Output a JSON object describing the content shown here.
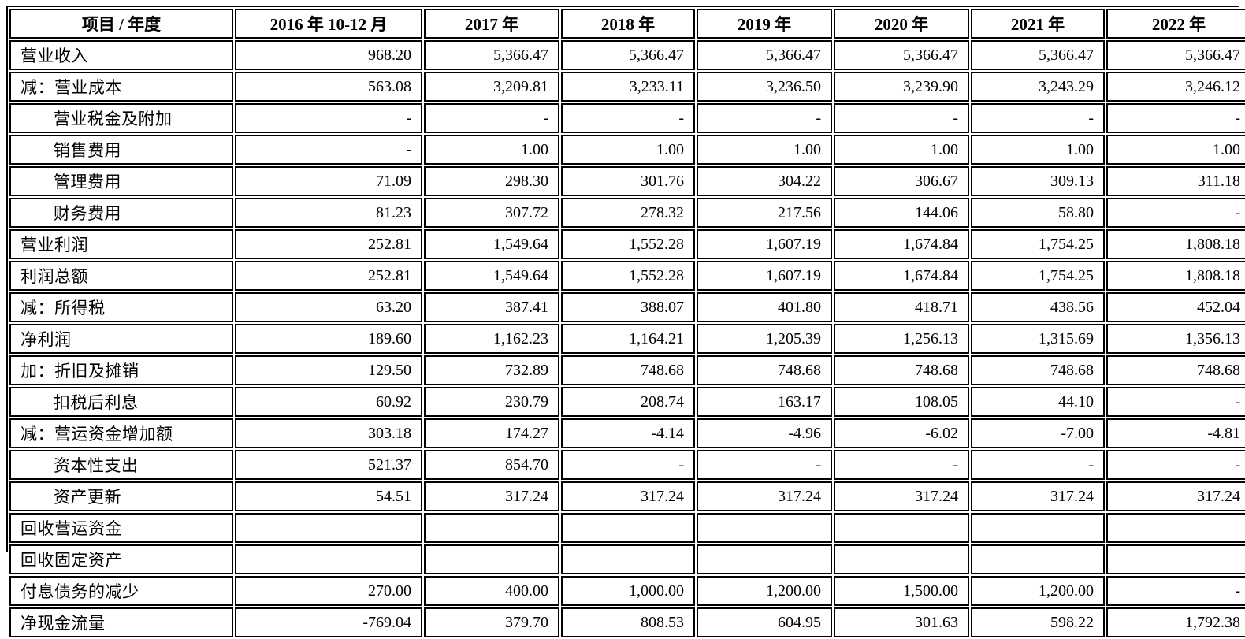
{
  "colors": {
    "text": "#000000",
    "border": "#000000",
    "background": "#ffffff"
  },
  "table": {
    "columns": [
      "项目 / 年度",
      "2016 年 10-12 月",
      "2017 年",
      "2018 年",
      "2019 年",
      "2020 年",
      "2021 年",
      "2022 年"
    ],
    "rows": [
      {
        "label": "营业收入",
        "indent": 0,
        "values": [
          "968.20",
          "5,366.47",
          "5,366.47",
          "5,366.47",
          "5,366.47",
          "5,366.47",
          "5,366.47"
        ]
      },
      {
        "label": "减：营业成本",
        "indent": 0,
        "values": [
          "563.08",
          "3,209.81",
          "3,233.11",
          "3,236.50",
          "3,239.90",
          "3,243.29",
          "3,246.12"
        ]
      },
      {
        "label": "营业税金及附加",
        "indent": 1,
        "values": [
          "-",
          "-",
          "-",
          "-",
          "-",
          "-",
          "-"
        ]
      },
      {
        "label": "销售费用",
        "indent": 1,
        "values": [
          "-",
          "1.00",
          "1.00",
          "1.00",
          "1.00",
          "1.00",
          "1.00"
        ]
      },
      {
        "label": "管理费用",
        "indent": 1,
        "values": [
          "71.09",
          "298.30",
          "301.76",
          "304.22",
          "306.67",
          "309.13",
          "311.18"
        ]
      },
      {
        "label": "财务费用",
        "indent": 1,
        "values": [
          "81.23",
          "307.72",
          "278.32",
          "217.56",
          "144.06",
          "58.80",
          "-"
        ]
      },
      {
        "label": "营业利润",
        "indent": 0,
        "values": [
          "252.81",
          "1,549.64",
          "1,552.28",
          "1,607.19",
          "1,674.84",
          "1,754.25",
          "1,808.18"
        ]
      },
      {
        "label": "利润总额",
        "indent": 0,
        "values": [
          "252.81",
          "1,549.64",
          "1,552.28",
          "1,607.19",
          "1,674.84",
          "1,754.25",
          "1,808.18"
        ]
      },
      {
        "label": "减：所得税",
        "indent": 0,
        "values": [
          "63.20",
          "387.41",
          "388.07",
          "401.80",
          "418.71",
          "438.56",
          "452.04"
        ]
      },
      {
        "label": "净利润",
        "indent": 0,
        "values": [
          "189.60",
          "1,162.23",
          "1,164.21",
          "1,205.39",
          "1,256.13",
          "1,315.69",
          "1,356.13"
        ]
      },
      {
        "label": "加：折旧及摊销",
        "indent": 0,
        "values": [
          "129.50",
          "732.89",
          "748.68",
          "748.68",
          "748.68",
          "748.68",
          "748.68"
        ]
      },
      {
        "label": "扣税后利息",
        "indent": 1,
        "values": [
          "60.92",
          "230.79",
          "208.74",
          "163.17",
          "108.05",
          "44.10",
          "-"
        ]
      },
      {
        "label": "减：营运资金增加额",
        "indent": 0,
        "values": [
          "303.18",
          "174.27",
          "-4.14",
          "-4.96",
          "-6.02",
          "-7.00",
          "-4.81"
        ]
      },
      {
        "label": "资本性支出",
        "indent": 1,
        "values": [
          "521.37",
          "854.70",
          "-",
          "-",
          "-",
          "-",
          "-"
        ]
      },
      {
        "label": "资产更新",
        "indent": 1,
        "values": [
          "54.51",
          "317.24",
          "317.24",
          "317.24",
          "317.24",
          "317.24",
          "317.24"
        ]
      },
      {
        "label": "回收营运资金",
        "indent": 0,
        "values": [
          "",
          "",
          "",
          "",
          "",
          "",
          ""
        ]
      },
      {
        "label": "回收固定资产",
        "indent": 0,
        "values": [
          "",
          "",
          "",
          "",
          "",
          "",
          ""
        ]
      },
      {
        "label": "付息债务的减少",
        "indent": 0,
        "values": [
          "270.00",
          "400.00",
          "1,000.00",
          "1,200.00",
          "1,500.00",
          "1,200.00",
          "-"
        ]
      },
      {
        "label": "净现金流量",
        "indent": 0,
        "values": [
          "-769.04",
          "379.70",
          "808.53",
          "604.95",
          "301.63",
          "598.22",
          "1,792.38"
        ]
      }
    ]
  }
}
